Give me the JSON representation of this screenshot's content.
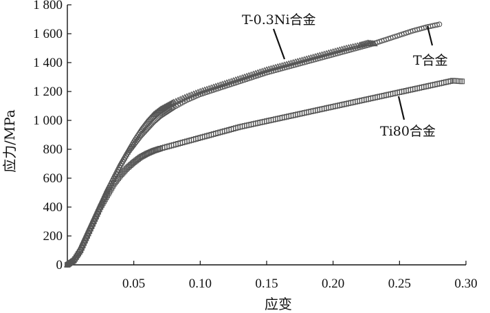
{
  "chart_data": {
    "type": "scatter",
    "xlabel": "应变",
    "ylabel": "应力/MPa",
    "xlim": [
      0,
      0.3
    ],
    "ylim": [
      0,
      1800
    ],
    "xticks": [
      "0.05",
      "0.10",
      "0.15",
      "0.20",
      "0.25",
      "0.30"
    ],
    "yticks": [
      "0",
      "200",
      "400",
      "600",
      "800",
      "1 000",
      "1 200",
      "1 400",
      "1 600",
      "1 800"
    ],
    "xtick_values": [
      0.05,
      0.1,
      0.15,
      0.2,
      0.25,
      0.3
    ],
    "ytick_values": [
      0,
      200,
      400,
      600,
      800,
      1000,
      1200,
      1400,
      1600,
      1800
    ],
    "series": [
      {
        "name": "T-0.3Ni合金",
        "marker": "triangle",
        "x": [
          0.0,
          0.005,
          0.01,
          0.015,
          0.02,
          0.025,
          0.03,
          0.035,
          0.04,
          0.045,
          0.05,
          0.055,
          0.06,
          0.065,
          0.07,
          0.075,
          0.08,
          0.09,
          0.1,
          0.11,
          0.12,
          0.13,
          0.14,
          0.15,
          0.16,
          0.17,
          0.18,
          0.19,
          0.2,
          0.21,
          0.22,
          0.226,
          0.231
        ],
        "y": [
          0,
          40,
          120,
          220,
          320,
          420,
          520,
          610,
          700,
          780,
          860,
          930,
          990,
          1040,
          1075,
          1100,
          1125,
          1165,
          1200,
          1230,
          1260,
          1290,
          1320,
          1350,
          1375,
          1400,
          1425,
          1450,
          1475,
          1500,
          1520,
          1535,
          1530
        ]
      },
      {
        "name": "T合金",
        "marker": "circle",
        "x": [
          0.0,
          0.005,
          0.01,
          0.015,
          0.02,
          0.025,
          0.03,
          0.035,
          0.04,
          0.045,
          0.05,
          0.055,
          0.06,
          0.065,
          0.07,
          0.075,
          0.08,
          0.09,
          0.1,
          0.11,
          0.12,
          0.13,
          0.14,
          0.15,
          0.16,
          0.17,
          0.18,
          0.19,
          0.2,
          0.21,
          0.22,
          0.23,
          0.24,
          0.25,
          0.26,
          0.27,
          0.28
        ],
        "y": [
          0,
          30,
          100,
          200,
          300,
          400,
          500,
          600,
          690,
          770,
          830,
          890,
          940,
          990,
          1030,
          1060,
          1090,
          1140,
          1180,
          1210,
          1240,
          1270,
          1300,
          1330,
          1355,
          1380,
          1405,
          1430,
          1455,
          1480,
          1505,
          1530,
          1560,
          1590,
          1620,
          1645,
          1665
        ]
      },
      {
        "name": "Ti80合金",
        "marker": "square",
        "x": [
          0.0,
          0.005,
          0.01,
          0.015,
          0.02,
          0.025,
          0.03,
          0.035,
          0.04,
          0.045,
          0.05,
          0.055,
          0.06,
          0.065,
          0.07,
          0.08,
          0.09,
          0.1,
          0.11,
          0.12,
          0.13,
          0.14,
          0.15,
          0.16,
          0.17,
          0.18,
          0.19,
          0.2,
          0.21,
          0.22,
          0.23,
          0.24,
          0.25,
          0.26,
          0.27,
          0.28,
          0.29,
          0.297
        ],
        "y": [
          0,
          30,
          100,
          200,
          300,
          400,
          480,
          560,
          620,
          670,
          710,
          745,
          770,
          790,
          805,
          830,
          855,
          880,
          905,
          930,
          955,
          975,
          995,
          1015,
          1035,
          1055,
          1075,
          1095,
          1115,
          1135,
          1155,
          1175,
          1195,
          1215,
          1235,
          1255,
          1275,
          1270
        ]
      }
    ],
    "annotations": [
      "T-0.3Ni合金",
      "T合金",
      "Ti80合金"
    ]
  }
}
